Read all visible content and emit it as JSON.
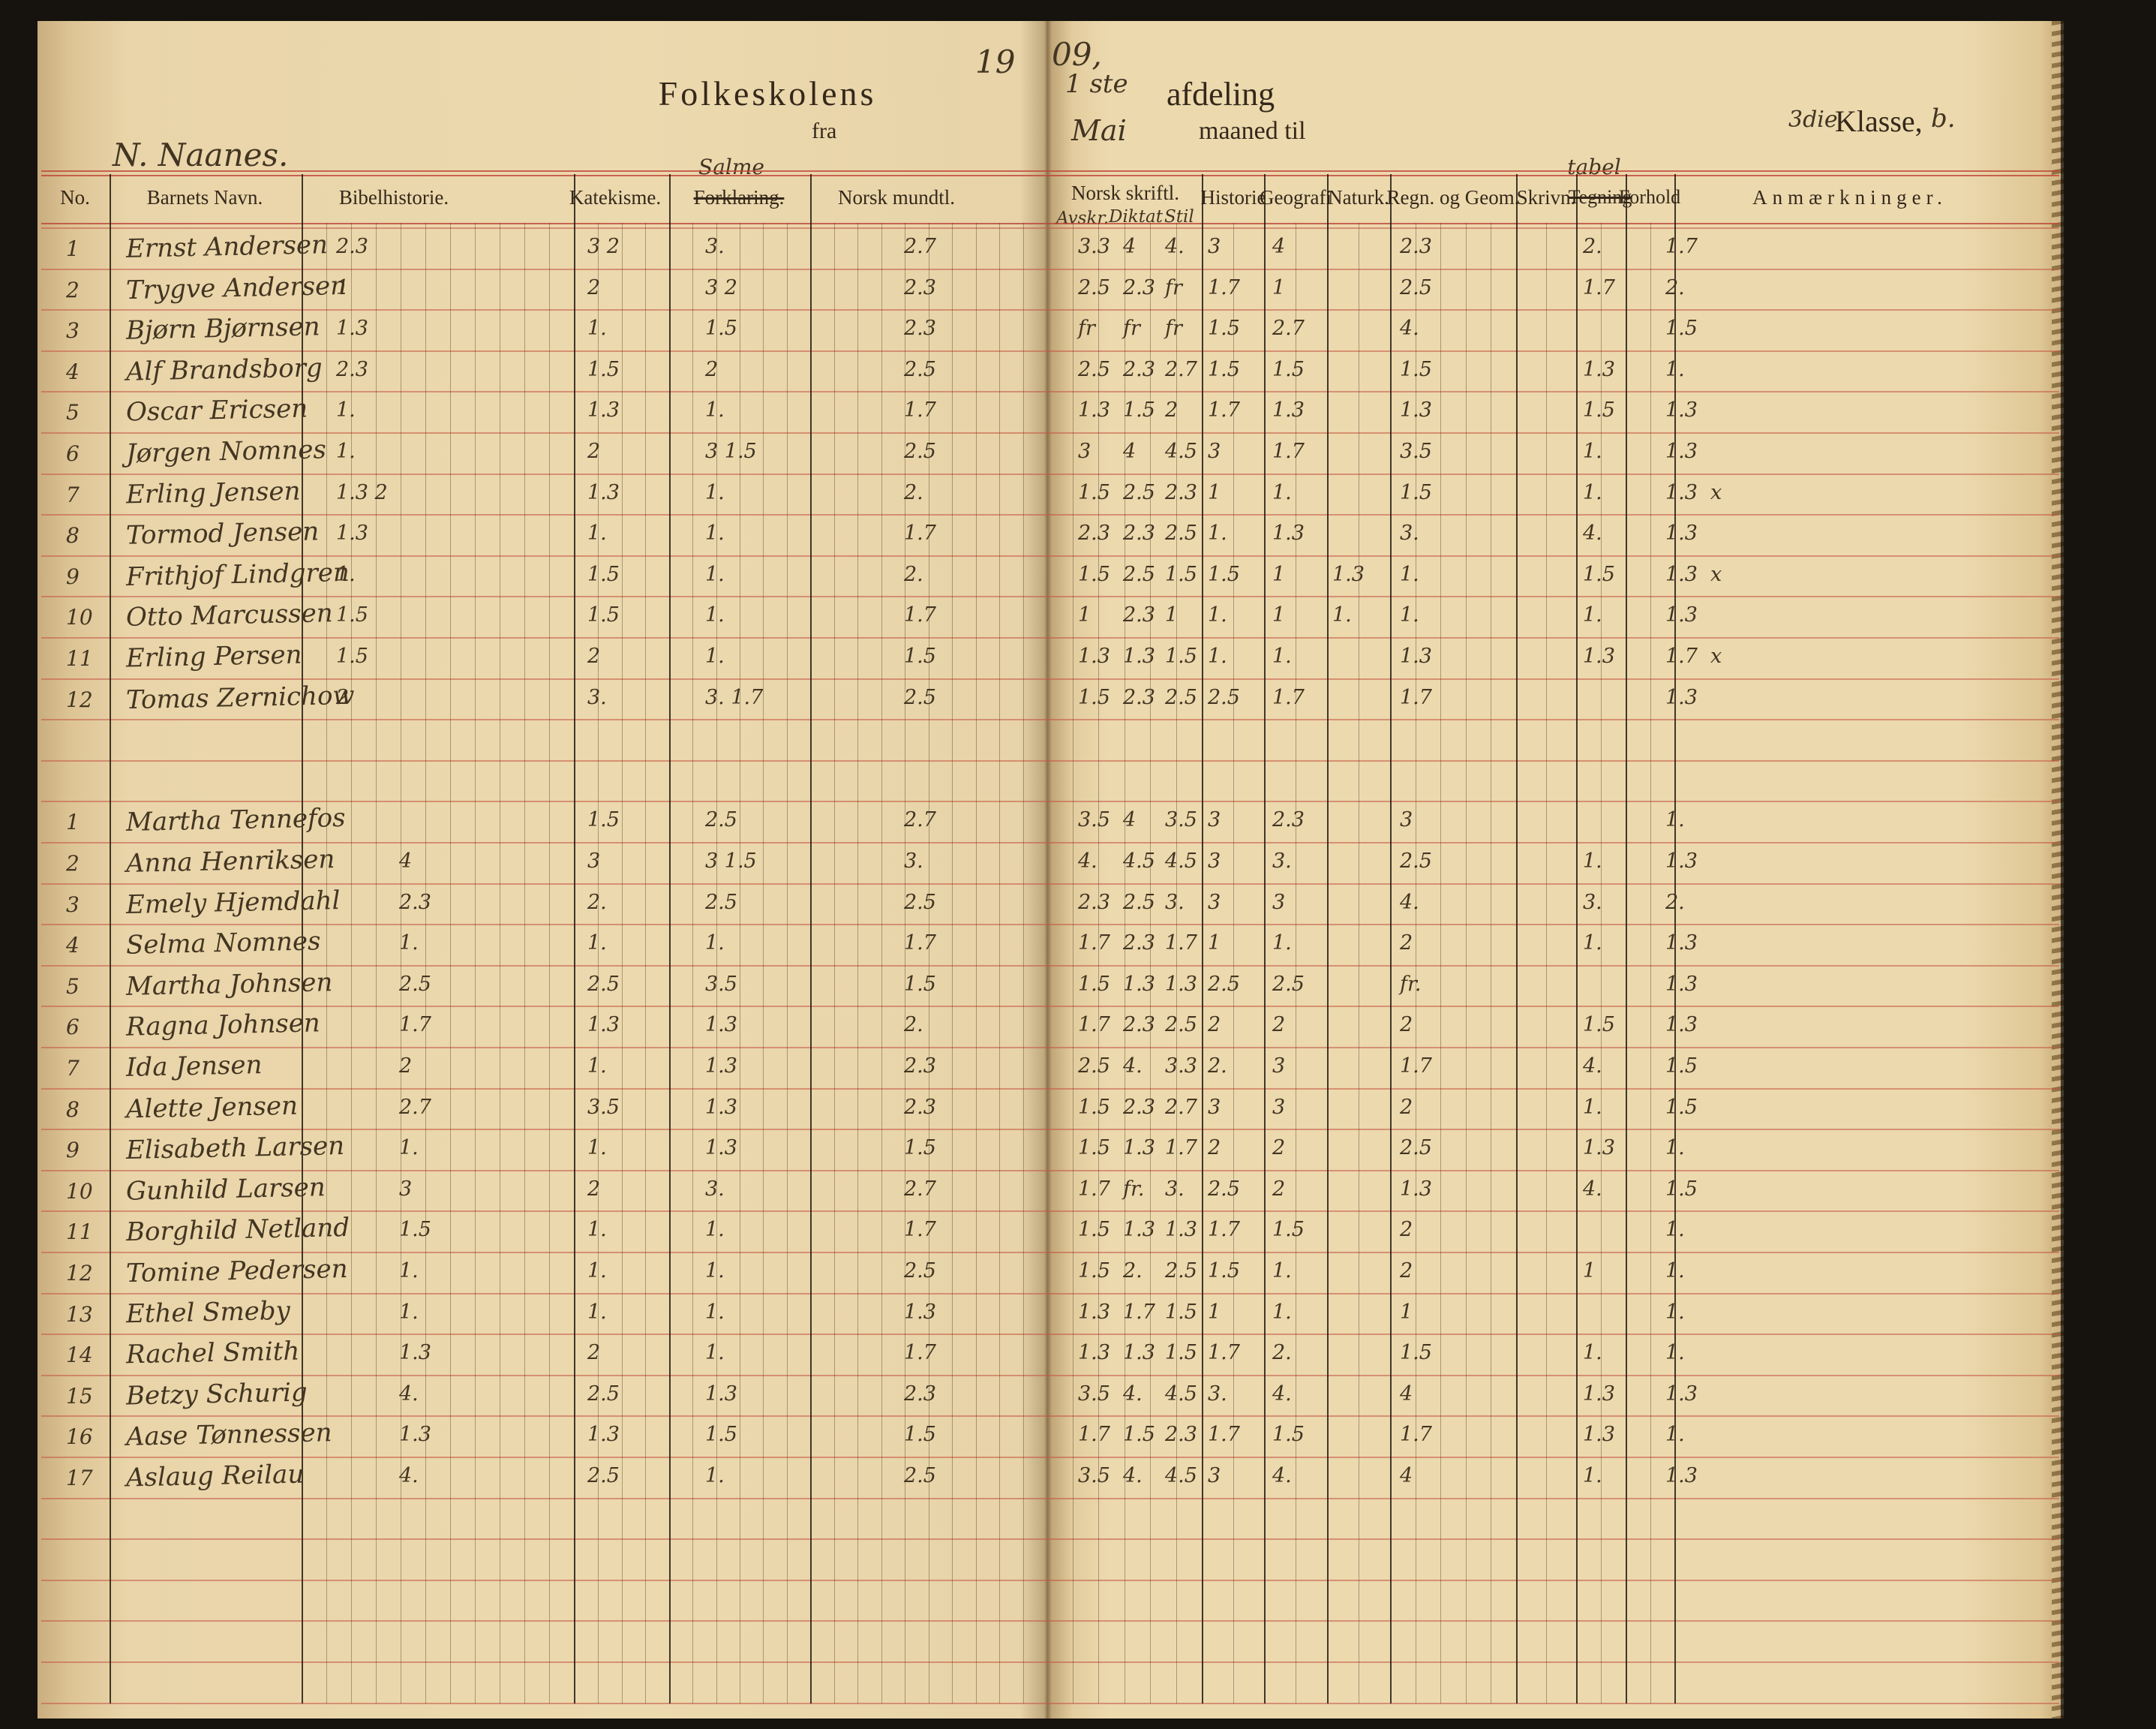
{
  "header": {
    "year_prefix": "19",
    "year_suffix": "09,",
    "school_name": "N. Naanes.",
    "title": "Folkeskolens",
    "afdeling_no": "1 ste",
    "afdeling_label": "afdeling",
    "fra_label": "fra",
    "month": "Mai",
    "maaned_til_label": "maaned til",
    "klasse_no": "3die",
    "klasse_label": "Klasse,",
    "klasse_suffix": "b."
  },
  "table": {
    "columns": {
      "no": "No.",
      "name": "Barnets Navn.",
      "bibelhistorie": "Bibelhistorie.",
      "katekisme": "Katekisme.",
      "forklaring": "Forklaring.",
      "forklaring_handwritten": "Salme",
      "norsk_mundtl": "Norsk mundtl.",
      "norsk_skriftl": "Norsk skriftl.",
      "historie": "Historie",
      "geografi": "Geografi",
      "naturk": "Naturk.",
      "regn": "Regn. og Geom.",
      "skrivn": "Skrivn.",
      "tegning": "Tegning",
      "tegning_handwritten": "tabel",
      "forhold": "Forhold",
      "anm": "Anmærkninger."
    },
    "norsk_skriftl_subs": [
      "Avskr.",
      "Diktat",
      "Stil"
    ]
  },
  "sections": [
    {
      "rows": [
        {
          "no": "1",
          "name": "Ernst Andersen",
          "b": "2.3",
          "k": "3 2",
          "s": "3.",
          "nm": "2.7",
          "n1": "3.3",
          "n2": "4",
          "n3": "4.",
          "hi": "3",
          "ge": "4",
          "na": "",
          "re": "2.3",
          "sk": "",
          "te": "2.",
          "fo": "1.7",
          "an": ""
        },
        {
          "no": "2",
          "name": "Trygve Andersen",
          "b": "1",
          "k": "2",
          "s": "3 2",
          "nm": "2.3",
          "n1": "2.5",
          "n2": "2.3",
          "n3": "fr",
          "hi": "1.7",
          "ge": "1",
          "na": "",
          "re": "2.5",
          "sk": "",
          "te": "1.7",
          "fo": "2.",
          "an": ""
        },
        {
          "no": "3",
          "name": "Bjørn Bjørnsen",
          "b": "1.3",
          "k": "1.",
          "s": "1.5",
          "nm": "2.3",
          "n1": "fr",
          "n2": "fr",
          "n3": "fr",
          "hi": "1.5",
          "ge": "2.7",
          "na": "",
          "re": "4.",
          "sk": "",
          "te": "",
          "fo": "1.5",
          "an": ""
        },
        {
          "no": "4",
          "name": "Alf Brandsborg",
          "b": "2.3",
          "k": "1.5",
          "s": "2",
          "nm": "2.5",
          "n1": "2.5",
          "n2": "2.3",
          "n3": "2.7",
          "hi": "1.5",
          "ge": "1.5",
          "na": "",
          "re": "1.5",
          "sk": "",
          "te": "1.3",
          "fo": "1.",
          "an": ""
        },
        {
          "no": "5",
          "name": "Oscar Ericsen",
          "b": "1.",
          "k": "1.3",
          "s": "1.",
          "nm": "1.7",
          "n1": "1.3",
          "n2": "1.5",
          "n3": "2",
          "hi": "1.7",
          "ge": "1.3",
          "na": "",
          "re": "1.3",
          "sk": "",
          "te": "1.5",
          "fo": "1.3",
          "an": ""
        },
        {
          "no": "6",
          "name": "Jørgen Nomnes",
          "b": "1.",
          "k": "2",
          "s": "3 1.5",
          "nm": "2.5",
          "n1": "3",
          "n2": "4",
          "n3": "4.5",
          "hi": "3",
          "ge": "1.7",
          "na": "",
          "re": "3.5",
          "sk": "",
          "te": "1.",
          "fo": "1.3",
          "an": ""
        },
        {
          "no": "7",
          "name": "Erling Jensen",
          "b": "1.3 2",
          "k": "1.3",
          "s": "1.",
          "nm": "2.",
          "n1": "1.5",
          "n2": "2.5",
          "n3": "2.3",
          "hi": "1",
          "ge": "1.",
          "na": "",
          "re": "1.5",
          "sk": "",
          "te": "1.",
          "fo": "1.3",
          "an": "x"
        },
        {
          "no": "8",
          "name": "Tormod Jensen",
          "b": "1.3",
          "k": "1.",
          "s": "1.",
          "nm": "1.7",
          "n1": "2.3",
          "n2": "2.3",
          "n3": "2.5",
          "hi": "1.",
          "ge": "1.3",
          "na": "",
          "re": "3.",
          "sk": "",
          "te": "4.",
          "fo": "1.3",
          "an": ""
        },
        {
          "no": "9",
          "name": "Frithjof Lindgren",
          "b": "1.",
          "k": "1.5",
          "s": "1.",
          "nm": "2.",
          "n1": "1.5",
          "n2": "2.5",
          "n3": "1.5",
          "hi": "1.5",
          "ge": "1",
          "na": "1.3",
          "re": "1.",
          "sk": "",
          "te": "1.5",
          "fo": "1.3",
          "an": "x"
        },
        {
          "no": "10",
          "name": "Otto Marcussen",
          "b": "1.5",
          "k": "1.5",
          "s": "1.",
          "nm": "1.7",
          "n1": "1",
          "n2": "2.3",
          "n3": "1",
          "hi": "1.",
          "ge": "1",
          "na": "1.",
          "re": "1.",
          "sk": "",
          "te": "1.",
          "fo": "1.3",
          "an": ""
        },
        {
          "no": "11",
          "name": "Erling Persen",
          "b": "1.5",
          "k": "2",
          "s": "1.",
          "nm": "1.5",
          "n1": "1.3",
          "n2": "1.3",
          "n3": "1.5",
          "hi": "1.",
          "ge": "1.",
          "na": "",
          "re": "1.3",
          "sk": "",
          "te": "1.3",
          "fo": "1.7",
          "an": "x"
        },
        {
          "no": "12",
          "name": "Tomas Zernichow",
          "b": "2",
          "k": "3.",
          "s": "3. 1.7",
          "nm": "2.5",
          "n1": "1.5",
          "n2": "2.3",
          "n3": "2.5",
          "hi": "2.5",
          "ge": "1.7",
          "na": "",
          "re": "1.7",
          "sk": "",
          "te": "",
          "fo": "1.3",
          "an": ""
        }
      ]
    },
    {
      "rows": [
        {
          "no": "1",
          "name": "Martha Tennefos",
          "b": "",
          "k": "1.5",
          "s": "2.5",
          "nm": "2.7",
          "n1": "3.5",
          "n2": "4",
          "n3": "3.5",
          "hi": "3",
          "ge": "2.3",
          "na": "",
          "re": "3",
          "sk": "",
          "te": "",
          "fo": "1.",
          "an": ""
        },
        {
          "no": "2",
          "name": "Anna Henriksen",
          "b": "4",
          "k": "3",
          "s": "3 1.5",
          "nm": "3.",
          "n1": "4.",
          "n2": "4.5",
          "n3": "4.5",
          "hi": "3",
          "ge": "3.",
          "na": "",
          "re": "2.5",
          "sk": "",
          "te": "1.",
          "fo": "1.3",
          "an": ""
        },
        {
          "no": "3",
          "name": "Emely Hjemdahl",
          "b": "2.3",
          "k": "2.",
          "s": "2.5",
          "nm": "2.5",
          "n1": "2.3",
          "n2": "2.5",
          "n3": "3.",
          "hi": "3",
          "ge": "3",
          "na": "",
          "re": "4.",
          "sk": "",
          "te": "3.",
          "fo": "2.",
          "an": ""
        },
        {
          "no": "4",
          "name": "Selma Nomnes",
          "b": "1.",
          "k": "1.",
          "s": "1.",
          "nm": "1.7",
          "n1": "1.7",
          "n2": "2.3",
          "n3": "1.7",
          "hi": "1",
          "ge": "1.",
          "na": "",
          "re": "2",
          "sk": "",
          "te": "1.",
          "fo": "1.3",
          "an": ""
        },
        {
          "no": "5",
          "name": "Martha Johnsen",
          "b": "2.5",
          "k": "2.5",
          "s": "3.5",
          "nm": "1.5",
          "n1": "1.5",
          "n2": "1.3",
          "n3": "1.3",
          "hi": "2.5",
          "ge": "2.5",
          "na": "",
          "re": "fr.",
          "sk": "",
          "te": "",
          "fo": "1.3",
          "an": ""
        },
        {
          "no": "6",
          "name": "Ragna Johnsen",
          "b": "1.7",
          "k": "1.3",
          "s": "1.3",
          "nm": "2.",
          "n1": "1.7",
          "n2": "2.3",
          "n3": "2.5",
          "hi": "2",
          "ge": "2",
          "na": "",
          "re": "2",
          "sk": "",
          "te": "1.5",
          "fo": "1.3",
          "an": ""
        },
        {
          "no": "7",
          "name": "Ida Jensen",
          "b": "2",
          "k": "1.",
          "s": "1.3",
          "nm": "2.3",
          "n1": "2.5",
          "n2": "4.",
          "n3": "3.3",
          "hi": "2.",
          "ge": "3",
          "na": "",
          "re": "1.7",
          "sk": "",
          "te": "4.",
          "fo": "1.5",
          "an": ""
        },
        {
          "no": "8",
          "name": "Alette Jensen",
          "b": "2.7",
          "k": "3.5",
          "s": "1.3",
          "nm": "2.3",
          "n1": "1.5",
          "n2": "2.3",
          "n3": "2.7",
          "hi": "3",
          "ge": "3",
          "na": "",
          "re": "2",
          "sk": "",
          "te": "1.",
          "fo": "1.5",
          "an": ""
        },
        {
          "no": "9",
          "name": "Elisabeth Larsen",
          "b": "1.",
          "k": "1.",
          "s": "1.3",
          "nm": "1.5",
          "n1": "1.5",
          "n2": "1.3",
          "n3": "1.7",
          "hi": "2",
          "ge": "2",
          "na": "",
          "re": "2.5",
          "sk": "",
          "te": "1.3",
          "fo": "1.",
          "an": ""
        },
        {
          "no": "10",
          "name": "Gunhild Larsen",
          "b": "3",
          "k": "2",
          "s": "3.",
          "nm": "2.7",
          "n1": "1.7",
          "n2": "fr.",
          "n3": "3.",
          "hi": "2.5",
          "ge": "2",
          "na": "",
          "re": "1.3",
          "sk": "",
          "te": "4.",
          "fo": "1.5",
          "an": ""
        },
        {
          "no": "11",
          "name": "Borghild Netland",
          "b": "1.5",
          "k": "1.",
          "s": "1.",
          "nm": "1.7",
          "n1": "1.5",
          "n2": "1.3",
          "n3": "1.3",
          "hi": "1.7",
          "ge": "1.5",
          "na": "",
          "re": "2",
          "sk": "",
          "te": "",
          "fo": "1.",
          "an": ""
        },
        {
          "no": "12",
          "name": "Tomine Pedersen",
          "b": "1.",
          "k": "1.",
          "s": "1.",
          "nm": "2.5",
          "n1": "1.5",
          "n2": "2.",
          "n3": "2.5",
          "hi": "1.5",
          "ge": "1.",
          "na": "",
          "re": "2",
          "sk": "",
          "te": "1",
          "fo": "1.",
          "an": ""
        },
        {
          "no": "13",
          "name": "Ethel Smeby",
          "b": "1.",
          "k": "1.",
          "s": "1.",
          "nm": "1.3",
          "n1": "1.3",
          "n2": "1.7",
          "n3": "1.5",
          "hi": "1",
          "ge": "1.",
          "na": "",
          "re": "1",
          "sk": "",
          "te": "",
          "fo": "1.",
          "an": ""
        },
        {
          "no": "14",
          "name": "Rachel Smith",
          "b": "1.3",
          "k": "2",
          "s": "1.",
          "nm": "1.7",
          "n1": "1.3",
          "n2": "1.3",
          "n3": "1.5",
          "hi": "1.7",
          "ge": "2.",
          "na": "",
          "re": "1.5",
          "sk": "",
          "te": "1.",
          "fo": "1.",
          "an": ""
        },
        {
          "no": "15",
          "name": "Betzy Schurig",
          "b": "4.",
          "k": "2.5",
          "s": "1.3",
          "nm": "2.3",
          "n1": "3.5",
          "n2": "4.",
          "n3": "4.5",
          "hi": "3.",
          "ge": "4.",
          "na": "",
          "re": "4",
          "sk": "",
          "te": "1.3",
          "fo": "1.3",
          "an": ""
        },
        {
          "no": "16",
          "name": "Aase Tønnessen",
          "b": "1.3",
          "k": "1.3",
          "s": "1.5",
          "nm": "1.5",
          "n1": "1.7",
          "n2": "1.5",
          "n3": "2.3",
          "hi": "1.7",
          "ge": "1.5",
          "na": "",
          "re": "1.7",
          "sk": "",
          "te": "1.3",
          "fo": "1.",
          "an": ""
        },
        {
          "no": "17",
          "name": "Aslaug Reilau",
          "b": "4.",
          "k": "2.5",
          "s": "1.",
          "nm": "2.5",
          "n1": "3.5",
          "n2": "4.",
          "n3": "4.5",
          "hi": "3",
          "ge": "4.",
          "na": "",
          "re": "4",
          "sk": "",
          "te": "1.",
          "fo": "1.3",
          "an": ""
        }
      ]
    }
  ]
}
